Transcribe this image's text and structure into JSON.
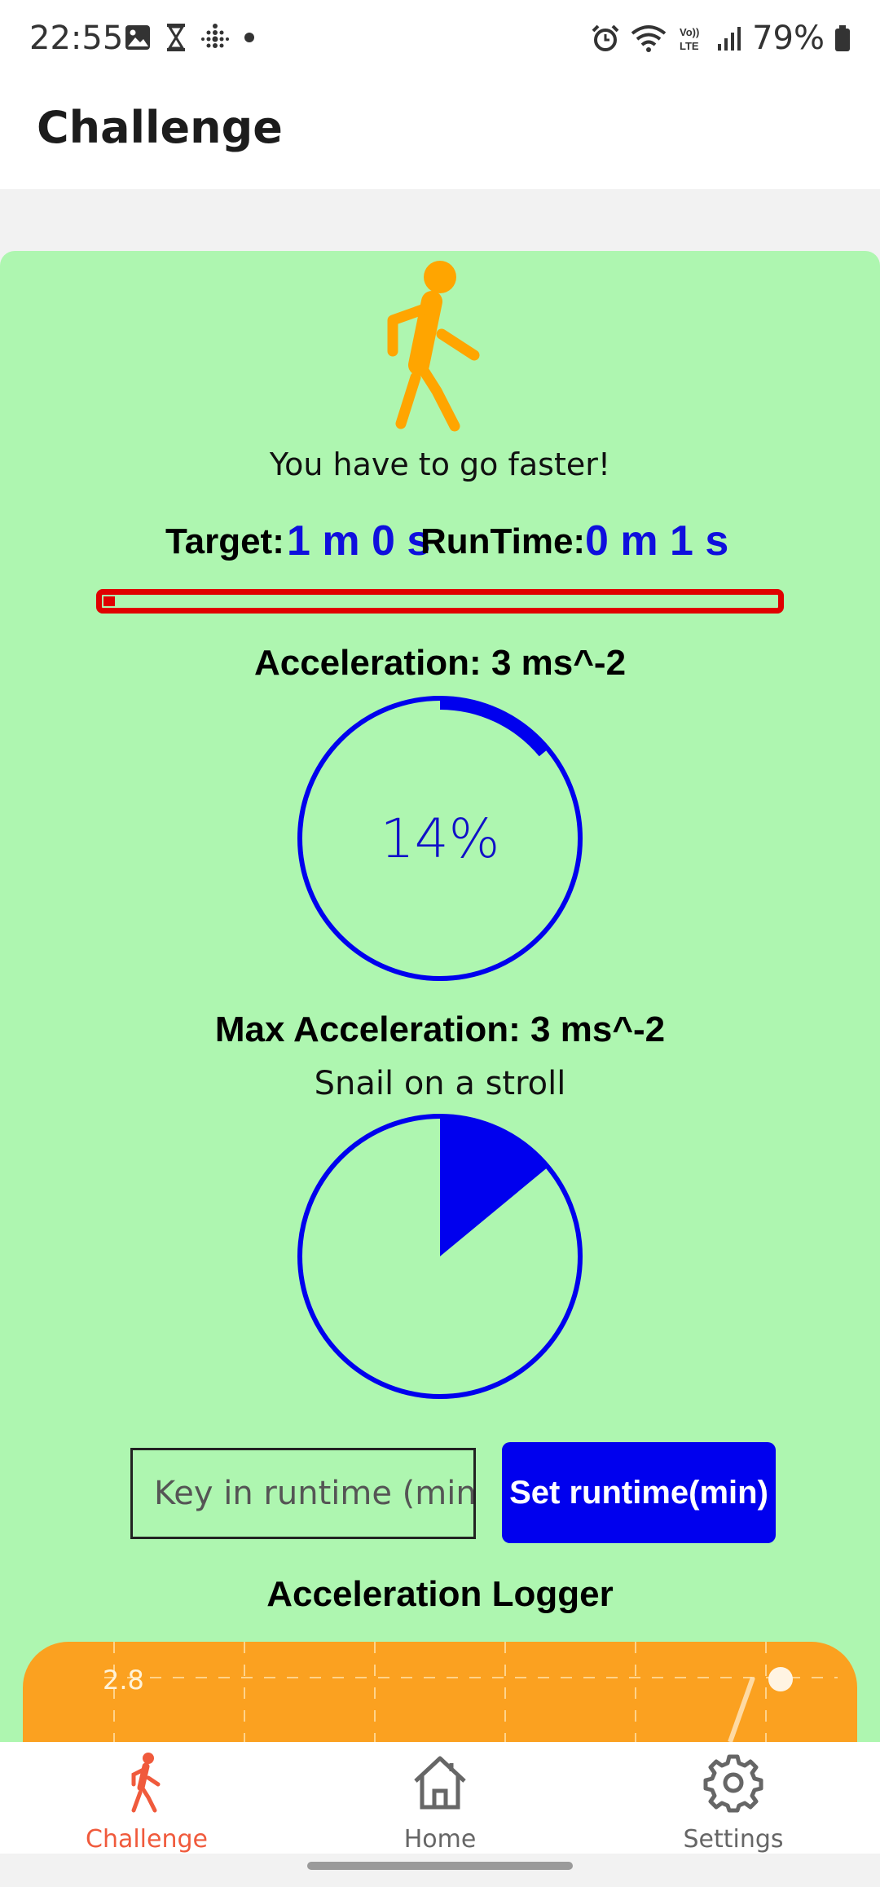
{
  "status_bar": {
    "time": "22:55",
    "battery": "79%",
    "left_icons": [
      "gallery-icon",
      "hourglass-icon",
      "fitbit-icon",
      "dot-icon"
    ],
    "right_icons": [
      "alarm-icon",
      "wifi-icon",
      "volte-icon",
      "signal-icon",
      "battery-icon"
    ]
  },
  "app_bar": {
    "title": "Challenge"
  },
  "challenge": {
    "message": "You have to go faster!",
    "target_label": "Target:",
    "target_value": "1 m 0 s",
    "runtime_label": "RunTime:",
    "runtime_value": "0 m 1 s",
    "progress_fraction": 0.017,
    "acceleration_title": "Acceleration: 3 ms^-2",
    "acceleration_percent": 14,
    "acceleration_text": "14%",
    "max_acceleration_title": "Max Acceleration: 3 ms^-2",
    "max_acceleration_subtitle": "Snail on a stroll",
    "max_acceleration_fraction": 0.14,
    "runtime_input": {
      "value": "",
      "placeholder": "Key in runtime (min)"
    },
    "set_button": "Set runtime(min)",
    "logger_title": "Acceleration Logger",
    "logger_y_label": "2.8"
  },
  "colors": {
    "card_bg": "#aef6b0",
    "accent_blue": "#0000ee",
    "progress_red": "#e00000",
    "walker_orange": "#ffa500",
    "logger_orange": "#fba120",
    "nav_active": "#f05a3c",
    "nav_inactive": "#666666"
  },
  "bottom_nav": {
    "items": [
      {
        "label": "Challenge",
        "icon": "walk-icon",
        "active": true
      },
      {
        "label": "Home",
        "icon": "home-icon",
        "active": false
      },
      {
        "label": "Settings",
        "icon": "gear-icon",
        "active": false
      }
    ]
  }
}
